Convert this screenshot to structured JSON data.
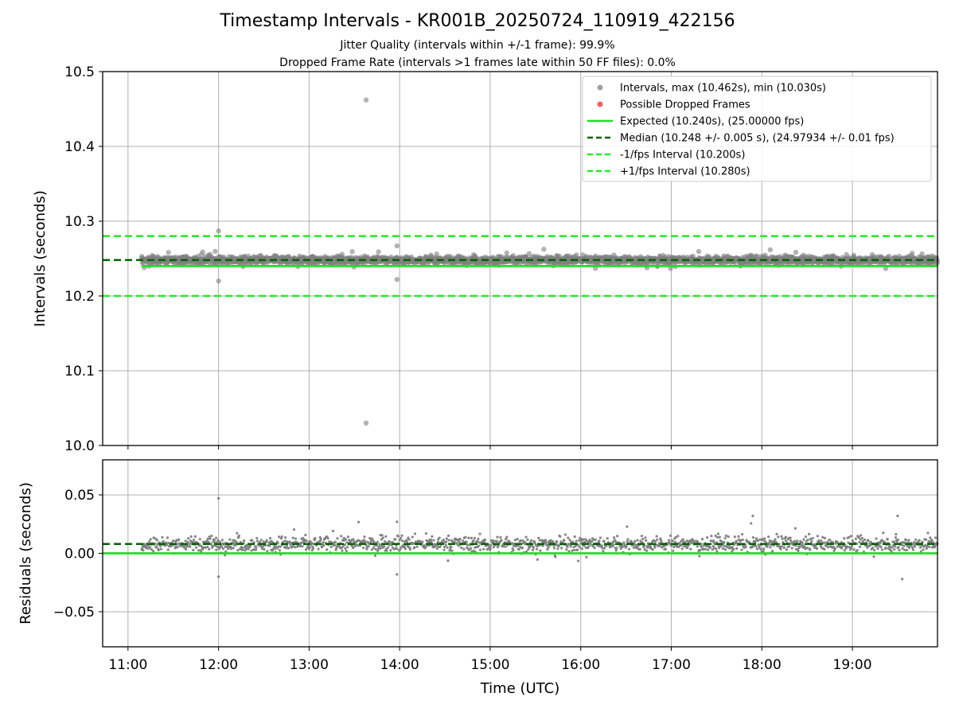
{
  "chart_data": {
    "type": "scatter",
    "title": "Timestamp Intervals - KR001B_20250724_110919_422156",
    "subtitle_lines": [
      "Jitter Quality (intervals within +/-1 frame): 99.9%",
      "Dropped Frame Rate (intervals >1 frames late within 50 FF files): 0.0%"
    ],
    "xlabel": "Time (UTC)",
    "x_tick_labels": [
      "11:00",
      "12:00",
      "13:00",
      "14:00",
      "15:00",
      "16:00",
      "17:00",
      "18:00",
      "19:00"
    ],
    "x_tick_hours": [
      11,
      12,
      13,
      14,
      15,
      16,
      17,
      18,
      19
    ],
    "x_range_hours": [
      10.72,
      19.94
    ],
    "data_start_hour": 11.15,
    "data_end_hour": 19.94,
    "grid": true,
    "legend_position": "top-right",
    "panels": [
      {
        "name": "intervals",
        "ylabel": "Intervals (seconds)",
        "ylim": [
          10.0,
          10.5
        ],
        "y_ticks": [
          10.0,
          10.1,
          10.2,
          10.3,
          10.4,
          10.5
        ],
        "y_tick_labels": [
          "10.0",
          "10.1",
          "10.2",
          "10.3",
          "10.4",
          "10.5"
        ],
        "expected": 10.24,
        "median": 10.248,
        "lower_interval": 10.2,
        "upper_interval": 10.28,
        "max_interval": 10.462,
        "min_interval": 10.03,
        "outliers": [
          {
            "x": 13.63,
            "y": 10.462
          },
          {
            "x": 13.63,
            "y": 10.03
          },
          {
            "x": 12.0,
            "y": 10.287
          },
          {
            "x": 12.0,
            "y": 10.22
          },
          {
            "x": 13.97,
            "y": 10.267
          },
          {
            "x": 13.97,
            "y": 10.222
          }
        ]
      },
      {
        "name": "residuals",
        "ylabel": "Residuals (seconds)",
        "ylim": [
          -0.08,
          0.08
        ],
        "y_ticks": [
          -0.05,
          0.0,
          0.05
        ],
        "y_tick_labels": [
          "−0.05",
          "0.00",
          "0.05"
        ],
        "zero": 0.0,
        "median": 0.008,
        "outliers": [
          {
            "x": 12.0,
            "y": 0.047
          },
          {
            "x": 12.0,
            "y": -0.02
          },
          {
            "x": 13.97,
            "y": 0.027
          },
          {
            "x": 13.97,
            "y": -0.018
          },
          {
            "x": 17.9,
            "y": 0.032
          },
          {
            "x": 19.5,
            "y": 0.032
          },
          {
            "x": 19.55,
            "y": -0.022
          }
        ]
      }
    ],
    "legend": [
      {
        "label": "Intervals, max (10.462s), min (10.030s)",
        "kind": "dot",
        "color": "#a0a0a0"
      },
      {
        "label": "Possible Dropped Frames",
        "kind": "dot",
        "color": "#f06060"
      },
      {
        "label": "Expected (10.240s), (25.00000 fps)",
        "kind": "solid",
        "color": "#22dd22"
      },
      {
        "label": "Median (10.248 +/- 0.005 s), (24.97934 +/- 0.01 fps)",
        "kind": "dashed",
        "color": "#006400"
      },
      {
        "label": "-1/fps Interval (10.200s)",
        "kind": "dashed",
        "color": "#22ee22"
      },
      {
        "label": "+1/fps Interval (10.280s)",
        "kind": "dashed",
        "color": "#22ee22"
      }
    ],
    "colors": {
      "points": "#808080",
      "expected": "#22dd22",
      "median": "#006400",
      "bounds": "#22ee22",
      "grid": "#b0b0b0"
    }
  }
}
